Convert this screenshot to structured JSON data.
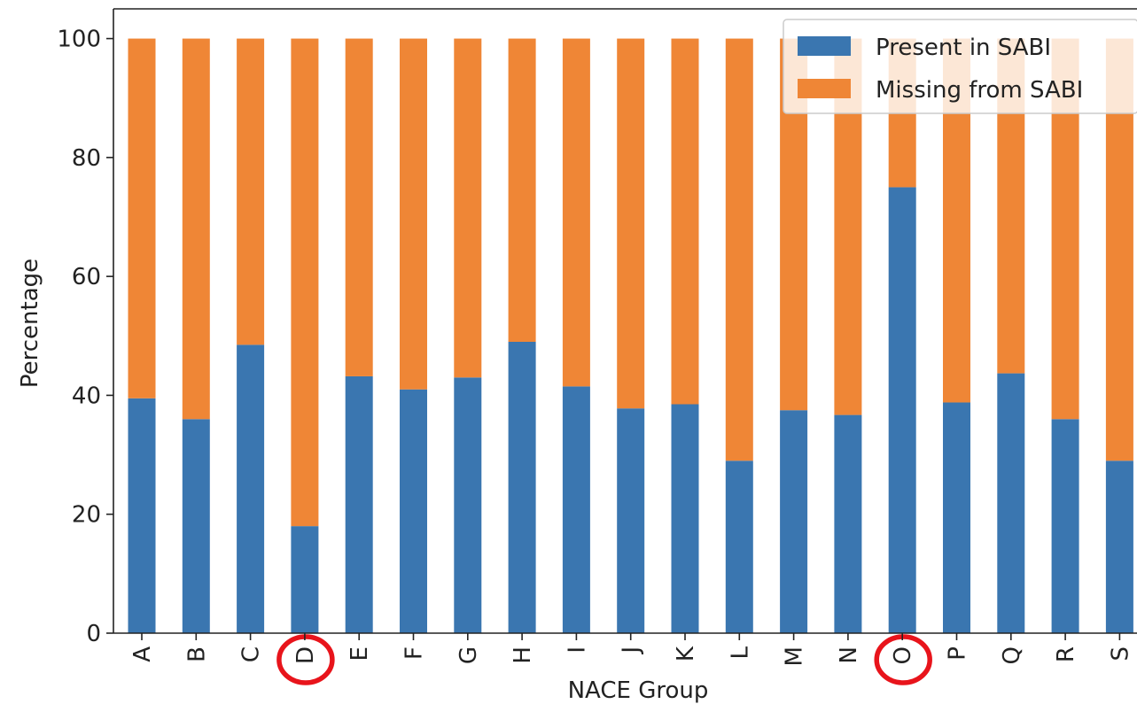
{
  "chart_data": {
    "type": "bar",
    "stacked": true,
    "title": "",
    "xlabel": "NACE Group",
    "ylabel": "Percentage",
    "ylim": [
      0,
      105
    ],
    "yticks": [
      0,
      20,
      40,
      60,
      80,
      100
    ],
    "grid": false,
    "legend_position": "top-right",
    "categories": [
      "A",
      "B",
      "C",
      "D",
      "E",
      "F",
      "G",
      "H",
      "I",
      "J",
      "K",
      "L",
      "M",
      "N",
      "O",
      "P",
      "Q",
      "R",
      "S"
    ],
    "series": [
      {
        "name": "Present in SABI",
        "color": "#3a76b0",
        "values": [
          39.5,
          36,
          48.5,
          18,
          43.2,
          41,
          43,
          49,
          41.5,
          37.8,
          38.5,
          29,
          37.5,
          36.7,
          75,
          38.8,
          43.7,
          36,
          29
        ]
      },
      {
        "name": "Missing from SABI",
        "color": "#ef8636",
        "values": [
          60.5,
          64,
          51.5,
          82,
          56.8,
          59,
          57,
          51,
          58.5,
          62.2,
          61.5,
          71,
          62.5,
          63.3,
          25,
          61.2,
          56.3,
          64,
          71
        ]
      }
    ],
    "highlighted_categories": [
      "D",
      "O"
    ],
    "highlight_color": "#e8141b"
  }
}
